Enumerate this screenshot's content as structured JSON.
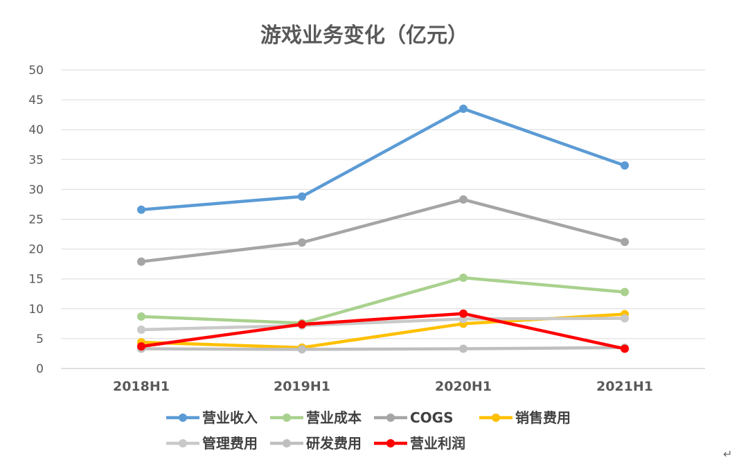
{
  "chart_data": {
    "type": "line",
    "title": "游戏业务变化（亿元）",
    "categories": [
      "2018H1",
      "2019H1",
      "2020H1",
      "2021H1"
    ],
    "ylim": [
      0,
      50
    ],
    "yticks": [
      0,
      5,
      10,
      15,
      20,
      25,
      30,
      35,
      40,
      45,
      50
    ],
    "grid": true,
    "legend_position": "bottom",
    "series": [
      {
        "name": "营业收入",
        "color": "#5B9BD5",
        "values": [
          26.6,
          28.8,
          43.5,
          34.0
        ]
      },
      {
        "name": "营业成本",
        "color": "#A9D18E",
        "values": [
          8.7,
          7.6,
          15.2,
          12.8
        ]
      },
      {
        "name": "COGS",
        "color": "#A5A5A5",
        "values": [
          17.9,
          21.1,
          28.3,
          21.2
        ]
      },
      {
        "name": "销售费用",
        "color": "#FFC000",
        "values": [
          4.4,
          3.5,
          7.5,
          9.1
        ]
      },
      {
        "name": "管理费用",
        "color": "#C9C9C9",
        "values": [
          6.5,
          7.2,
          8.3,
          8.4
        ]
      },
      {
        "name": "研发费用",
        "color": "#BFBFBF",
        "values": [
          3.3,
          3.2,
          3.3,
          3.5
        ]
      },
      {
        "name": "营业利润",
        "color": "#FF0000",
        "values": [
          3.7,
          7.4,
          9.2,
          3.3
        ]
      }
    ]
  }
}
